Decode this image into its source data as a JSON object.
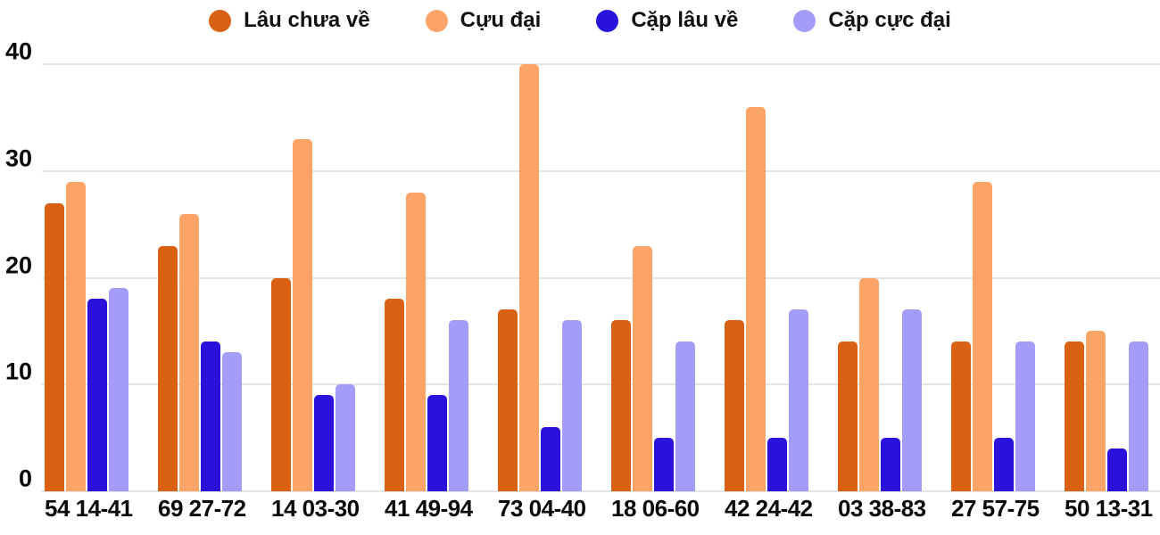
{
  "chart_data": {
    "type": "bar",
    "title": "",
    "xlabel": "",
    "ylabel": "",
    "ylim": [
      0,
      40
    ],
    "yticks": [
      0,
      10,
      20,
      30,
      40
    ],
    "grid": true,
    "legend_position": "top",
    "categories": [
      "54 14-41",
      "69 27-72",
      "14 03-30",
      "41 49-94",
      "73 04-40",
      "18 06-60",
      "42 24-42",
      "03 38-83",
      "27 57-75",
      "50 13-31"
    ],
    "series": [
      {
        "name": "Lâu chưa về",
        "color": "#d96114",
        "values": [
          27,
          23,
          20,
          18,
          17,
          16,
          16,
          14,
          14,
          14
        ]
      },
      {
        "name": "Cựu đại",
        "color": "#fca368",
        "values": [
          29,
          26,
          33,
          28,
          40,
          23,
          36,
          20,
          29,
          15
        ]
      },
      {
        "name": "Cặp lâu về",
        "color": "#2a12dc",
        "values": [
          18,
          14,
          9,
          9,
          6,
          5,
          5,
          5,
          5,
          4
        ]
      },
      {
        "name": "Cặp cực đại",
        "color": "#a39cf8",
        "values": [
          19,
          13,
          10,
          16,
          16,
          14,
          17,
          17,
          14,
          14
        ]
      }
    ],
    "colors": {
      "gridline": "#e4e4e4",
      "axis_text": "#0a0a0a",
      "background": "#ffffff"
    }
  }
}
